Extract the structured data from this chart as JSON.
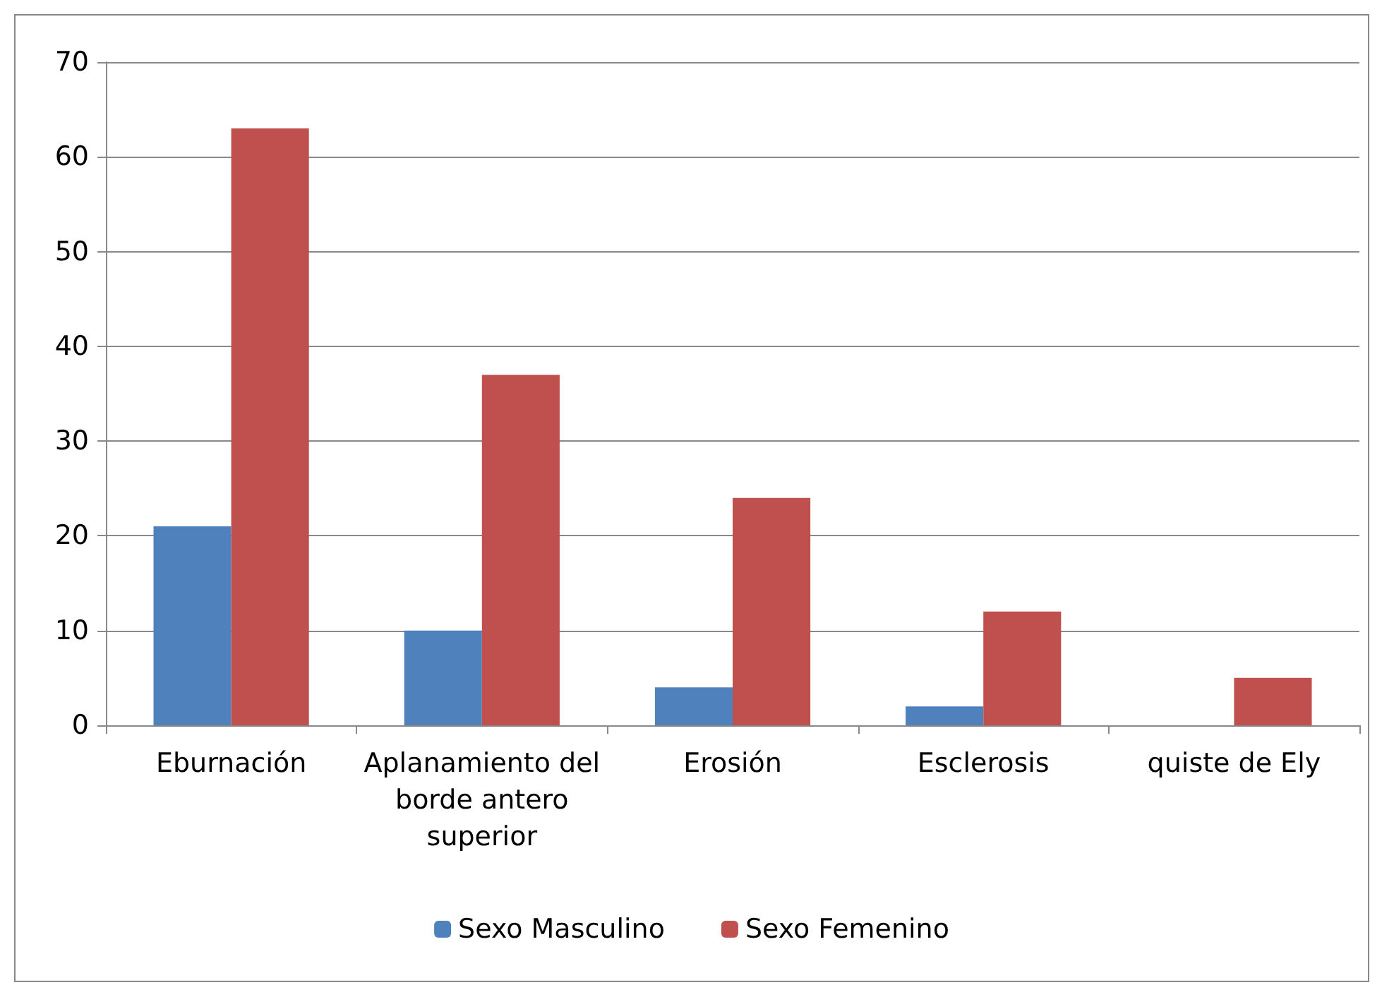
{
  "chart_data": {
    "type": "bar",
    "categories": [
      "Eburnación",
      "Aplanamiento del borde antero superior",
      "Erosión",
      "Esclerosis",
      "quiste de Ely"
    ],
    "series": [
      {
        "name": "Sexo Masculino",
        "color": "#4f81bd",
        "values": [
          21,
          10,
          4,
          2,
          0
        ]
      },
      {
        "name": "Sexo Femenino",
        "color": "#c0504d",
        "values": [
          63,
          37,
          24,
          12,
          5
        ]
      }
    ],
    "ylim": [
      0,
      70
    ],
    "yticks": [
      0,
      10,
      20,
      30,
      40,
      50,
      60,
      70
    ],
    "grid": "y",
    "legend": "bottom"
  }
}
